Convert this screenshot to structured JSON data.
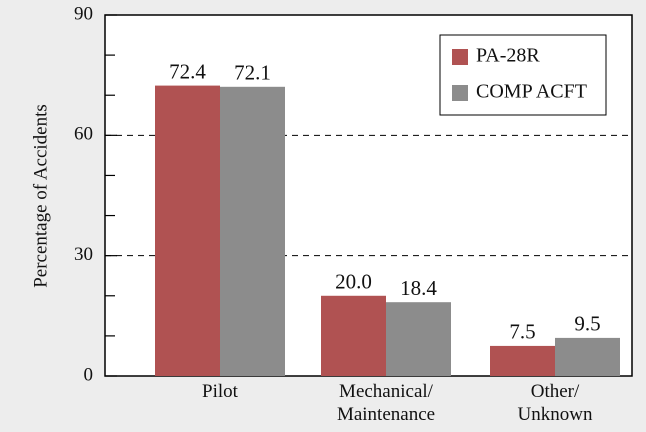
{
  "chart_data": {
    "type": "bar",
    "y_label": "Percentage of Accidents",
    "categories": [
      "Pilot",
      "Mechanical/\nMaintenance",
      "Other/\nUnknown"
    ],
    "series": [
      {
        "name": "PA-28R",
        "color": "#b05252",
        "values": [
          72.4,
          20,
          7.5
        ],
        "value_labels": [
          "72.4",
          "20.0",
          "7.5"
        ]
      },
      {
        "name": "COMP ACFT",
        "color": "#8c8c8c",
        "values": [
          72.1,
          18.4,
          9.5
        ],
        "value_labels": [
          "72.1",
          "18.4",
          "9.5"
        ]
      }
    ],
    "ylim": [
      0,
      90
    ],
    "yticks": [
      0,
      30,
      60,
      90
    ],
    "yminor_ticks": [
      10,
      20,
      40,
      50,
      70,
      80
    ],
    "grid": true,
    "legend": "upper right"
  }
}
